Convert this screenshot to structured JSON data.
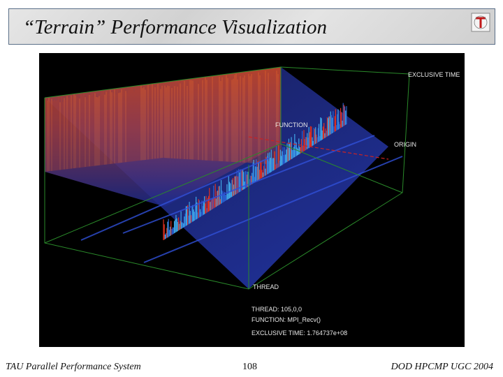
{
  "slide": {
    "title": "“Terrain” Performance Visualization",
    "footer_left": "TAU Parallel Performance System",
    "page_number": "108",
    "footer_right": "DOD HPCMP UGC 2004"
  },
  "visualization": {
    "axis_labels": {
      "exclusive_time": "EXCLUSIVE TIME",
      "function": "FUNCTION",
      "origin": "ORIGIN",
      "thread": "THREAD"
    },
    "readout": {
      "thread": "THREAD:  105,0,0",
      "function": "FUNCTION:  MPI_Recv()",
      "exclusive_time": "EXCLUSIVE TIME:  1.764737e+08"
    }
  },
  "colors": {
    "frame": "#2a8a2a",
    "marker": "#cc2222",
    "title_border": "#5a6f88"
  }
}
